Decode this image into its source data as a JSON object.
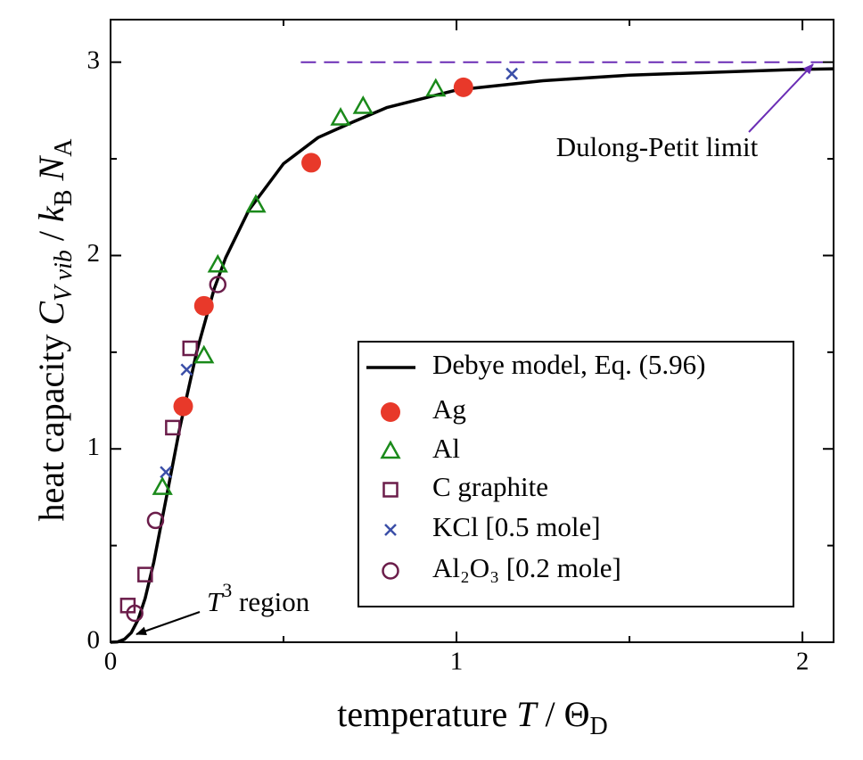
{
  "chart_data": {
    "type": "scatter",
    "xlabel": [
      "temperature ",
      "T",
      " / Θ",
      "D"
    ],
    "ylabel": [
      "heat capacity ",
      "C",
      "V vib",
      " / ",
      "k",
      "B",
      " N",
      "A"
    ],
    "xlim": [
      0,
      2.09
    ],
    "ylim": [
      0,
      3.22
    ],
    "xticks": [
      0,
      1,
      2
    ],
    "yticks": [
      0,
      1,
      2,
      3
    ],
    "xminorticks": [
      0.5,
      1.5
    ],
    "yminorticks": [
      0.5,
      1.5,
      2.5
    ],
    "lines": [
      {
        "name": "Debye model, Eq. (5.96)",
        "color": "#000000",
        "x": [
          0,
          0.02,
          0.04,
          0.06,
          0.08,
          0.1,
          0.125,
          0.15,
          0.1667,
          0.2,
          0.25,
          0.3,
          0.333,
          0.4,
          0.5,
          0.6,
          0.7,
          0.8,
          1,
          1.25,
          1.5,
          2,
          2.09
        ],
        "y": [
          0,
          0.002,
          0.015,
          0.05,
          0.118,
          0.227,
          0.414,
          0.645,
          0.798,
          1.107,
          1.509,
          1.83,
          1.989,
          2.235,
          2.475,
          2.61,
          2.69,
          2.766,
          2.856,
          2.904,
          2.933,
          2.963,
          2.966
        ]
      }
    ],
    "series": [
      {
        "name": "Ag",
        "color": "#e8392a",
        "marker": "filled-circle",
        "x": [
          1.02,
          0.58,
          0.27,
          0.21
        ],
        "y": [
          2.87,
          2.48,
          1.74,
          1.22
        ]
      },
      {
        "name": "Al",
        "color": "#1a8a1a",
        "marker": "triangle",
        "x": [
          0.94,
          0.73,
          0.665,
          0.42,
          0.31,
          0.27,
          0.15
        ],
        "y": [
          2.86,
          2.77,
          2.71,
          2.26,
          1.95,
          1.48,
          0.8
        ]
      },
      {
        "name": "C graphite",
        "color": "#6b1d4a",
        "marker": "square",
        "x": [
          0.23,
          0.18,
          0.1,
          0.05
        ],
        "y": [
          1.52,
          1.11,
          0.35,
          0.19
        ]
      },
      {
        "name": "KCl [0.5 mole]",
        "color": "#3b4fa8",
        "marker": "cross",
        "x": [
          1.16,
          0.22,
          0.16
        ],
        "y": [
          2.94,
          1.41,
          0.88
        ]
      },
      {
        "name": "Al₂O₃ [0.2 mole]",
        "color": "#6b1d4a",
        "marker": "circle",
        "x": [
          0.31,
          0.13,
          0.07
        ],
        "y": [
          1.85,
          0.63,
          0.15
        ]
      }
    ],
    "reference_line": {
      "y": 3,
      "x_start": 0.55,
      "color": "#6a2db5"
    },
    "annotations": {
      "limit": "Dulong-Petit limit",
      "limit_color": "#6a2db5",
      "region": [
        "T",
        "3",
        " region"
      ]
    }
  }
}
